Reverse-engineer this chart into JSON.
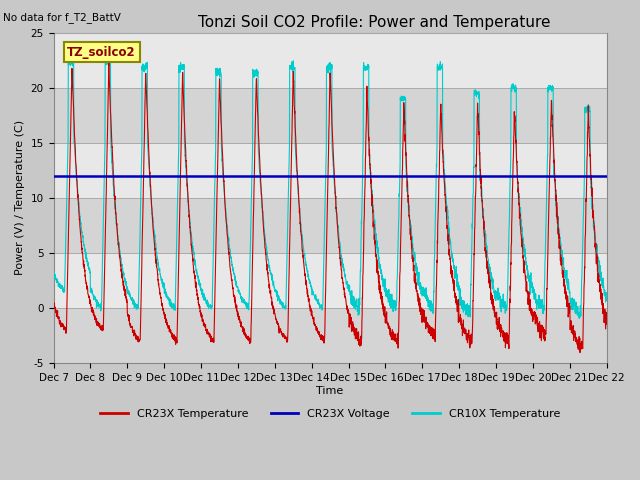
{
  "title": "Tonzi Soil CO2 Profile: Power and Temperature",
  "no_data_label": "No data for f_T2_BattV",
  "legend_box_label": "TZ_soilco2",
  "ylabel": "Power (V) / Temperature (C)",
  "xlabel": "Time",
  "ylim": [
    -5,
    25
  ],
  "voltage_value": 12.0,
  "voltage_color": "#0000BB",
  "cr23x_temp_color": "#CC0000",
  "cr10x_temp_color": "#00CCCC",
  "outer_bg_color": "#C8C8C8",
  "plot_bg_color": "#E0E0E0",
  "band1_color": "#D4D4D4",
  "band2_color": "#E8E8E8",
  "legend_entries": [
    "CR23X Temperature",
    "CR23X Voltage",
    "CR10X Temperature"
  ],
  "xtick_labels": [
    "Dec 7",
    "Dec 8",
    "Dec 9",
    "Dec 10",
    "Dec 11",
    "Dec 12",
    "Dec 13",
    "Dec 14",
    "Dec 15",
    "Dec 16",
    "Dec 17",
    "Dec 18",
    "Dec 19",
    "Dec 20",
    "Dec 21",
    "Dec 22"
  ],
  "ytick_values": [
    -5,
    0,
    5,
    10,
    15,
    20,
    25
  ],
  "title_fontsize": 11,
  "label_fontsize": 8,
  "tick_fontsize": 7.5
}
